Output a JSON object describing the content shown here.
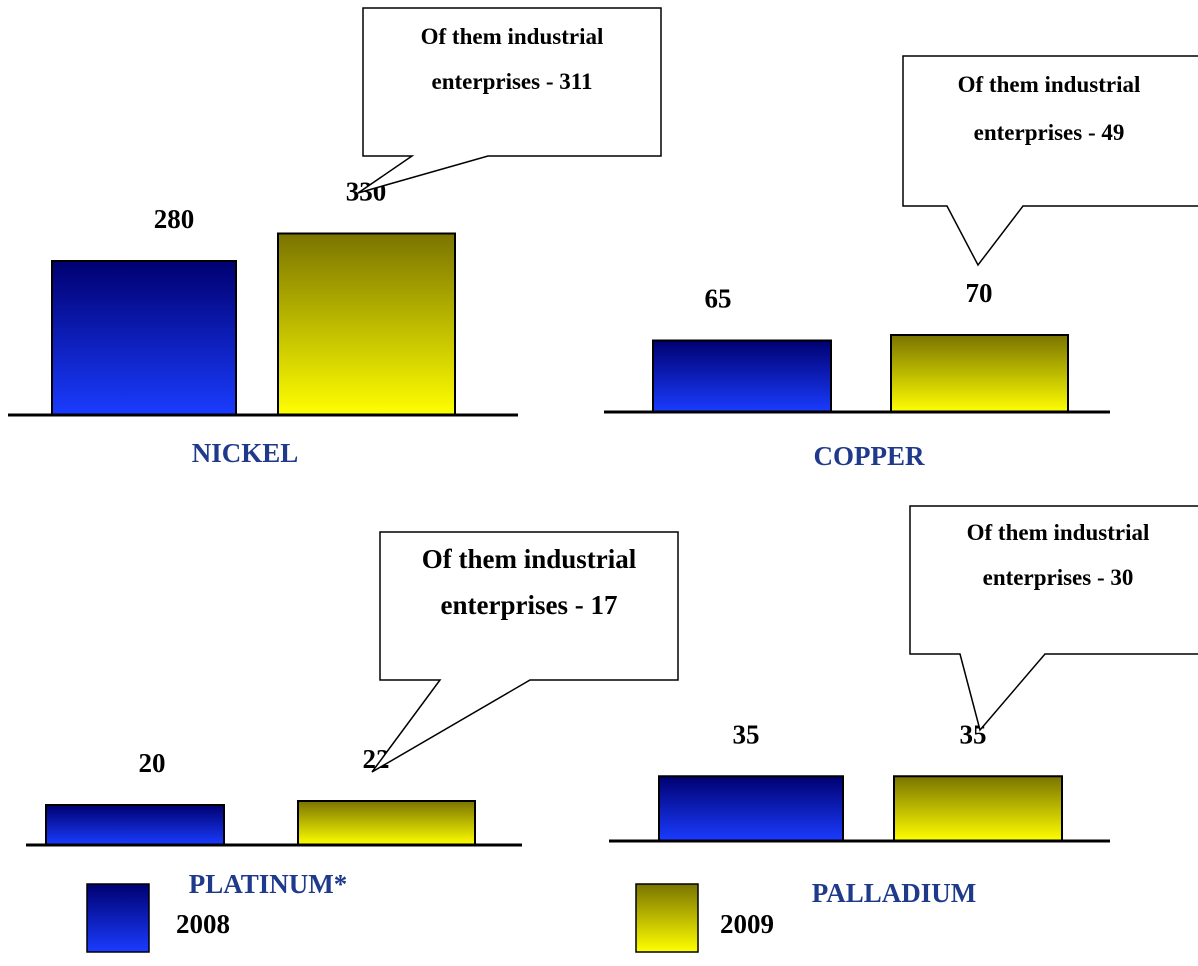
{
  "chart_data": [
    {
      "type": "bar",
      "categories": [
        "NICKEL"
      ],
      "series": [
        {
          "name": "2008",
          "values": [
            280
          ]
        },
        {
          "name": "2009",
          "values": [
            330
          ]
        }
      ],
      "data_labels": [
        "280",
        "330"
      ],
      "callout": "Of them industrial enterprises - 311",
      "title": "",
      "xlabel": "",
      "ylabel": ""
    },
    {
      "type": "bar",
      "categories": [
        "COPPER"
      ],
      "series": [
        {
          "name": "2008",
          "values": [
            65
          ]
        },
        {
          "name": "2009",
          "values": [
            70
          ]
        }
      ],
      "data_labels": [
        "65",
        "70"
      ],
      "callout": "Of them industrial enterprises - 49",
      "title": "",
      "xlabel": "",
      "ylabel": ""
    },
    {
      "type": "bar",
      "categories": [
        "PLATINUM*"
      ],
      "series": [
        {
          "name": "2008",
          "values": [
            20
          ]
        },
        {
          "name": "2009",
          "values": [
            22
          ]
        }
      ],
      "data_labels": [
        "20",
        "22"
      ],
      "callout": "Of them industrial enterprises - 17",
      "title": "",
      "xlabel": "",
      "ylabel": ""
    },
    {
      "type": "bar",
      "categories": [
        "PALLADIUM"
      ],
      "series": [
        {
          "name": "2008",
          "values": [
            35
          ]
        },
        {
          "name": "2009",
          "values": [
            35
          ]
        }
      ],
      "data_labels": [
        "35",
        "35"
      ],
      "callout": "Of them industrial enterprises - 30",
      "title": "",
      "xlabel": "",
      "ylabel": ""
    }
  ],
  "legend": {
    "placement": "bottom",
    "items": [
      {
        "label": "2008",
        "color": "#1a1acc"
      },
      {
        "label": "2009",
        "color": "#ffff00"
      }
    ]
  },
  "colors": {
    "bar_2008_top": "#000070",
    "bar_2008_bottom": "#1a3cff",
    "bar_2009_top": "#7a7400",
    "bar_2009_bottom": "#ffff00",
    "category_label": "#1f3a8a"
  }
}
